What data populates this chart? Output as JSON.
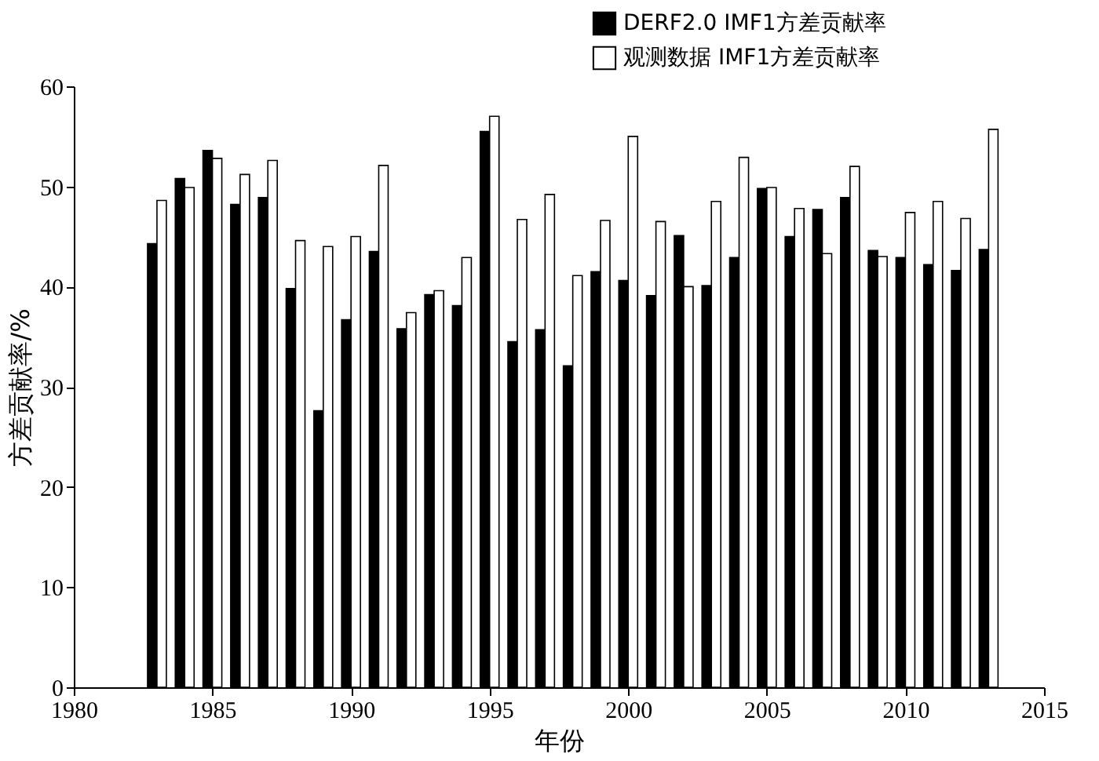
{
  "chart_data": {
    "type": "bar",
    "xlabel": "年份",
    "ylabel": "方差贡献率/%",
    "x": [
      1983,
      1984,
      1985,
      1986,
      1987,
      1988,
      1989,
      1990,
      1991,
      1992,
      1993,
      1994,
      1995,
      1996,
      1997,
      1998,
      1999,
      2000,
      2001,
      2002,
      2003,
      2004,
      2005,
      2006,
      2007,
      2008,
      2009,
      2010,
      2011,
      2012,
      2013
    ],
    "series": [
      {
        "name": "DERF2.0 IMF1方差贡献率",
        "color": "#000000",
        "values": [
          44.3,
          50.8,
          53.6,
          48.2,
          48.9,
          39.8,
          27.6,
          36.7,
          43.5,
          35.8,
          39.2,
          38.1,
          55.5,
          34.5,
          35.7,
          32.1,
          41.5,
          40.6,
          39.1,
          45.1,
          40.1,
          42.9,
          49.8,
          45.0,
          47.7,
          48.9,
          43.6,
          42.9,
          42.2,
          41.6,
          43.7
        ]
      },
      {
        "name": "观测数据 IMF1方差贡献率",
        "color": "#ffffff",
        "values": [
          48.6,
          49.9,
          52.8,
          51.2,
          52.6,
          44.6,
          44.0,
          45.0,
          52.1,
          37.4,
          39.6,
          42.9,
          57.0,
          46.7,
          49.2,
          41.1,
          46.6,
          55.0,
          46.5,
          40.0,
          48.5,
          52.9,
          49.9,
          47.8,
          43.3,
          52.0,
          43.0,
          47.4,
          48.5,
          46.8,
          55.7
        ]
      }
    ],
    "xlim": [
      1980,
      2015
    ],
    "xticks": [
      1980,
      1985,
      1990,
      1995,
      2000,
      2005,
      2010,
      2015
    ],
    "ylim": [
      0,
      60
    ],
    "yticks": [
      0,
      10,
      20,
      30,
      40,
      50,
      60
    ],
    "grid": false,
    "legend": "top right"
  }
}
